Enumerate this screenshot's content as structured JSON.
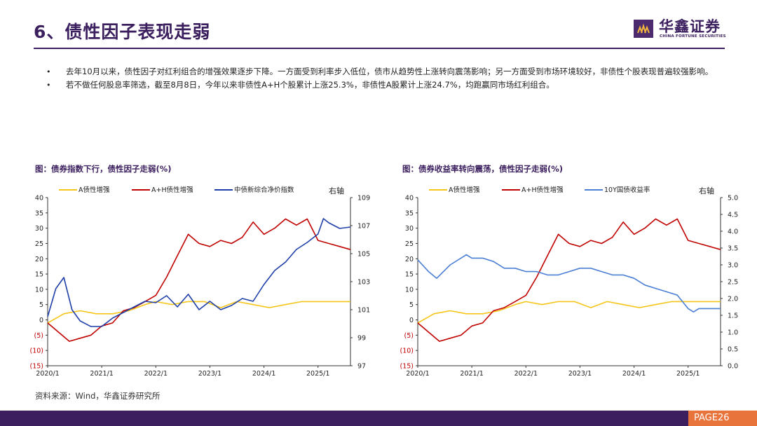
{
  "header": {
    "title": "6、债性因子表现走弱"
  },
  "logo": {
    "cn": "华鑫证券",
    "en": "CHINA FORTUNE SECURITIES"
  },
  "bullets": [
    "去年10月以来，债性因子对红利组合的增强效果逐步下降。一方面受到利率步入低位，债市从趋势性上涨转向震荡影响；另一方面受到市场环境较好，非债性个股表现普遍较强影响。",
    "若不做任何股息率筛选，截至8月8日，今年以来非债性A+H个股累计上涨25.3%，非债性A股累计上涨24.7%，均跑赢同市场红利组合。"
  ],
  "source": "资料来源：Wind，华鑫证券研究所",
  "page_label": "PAGE26",
  "colors": {
    "brand": "#3b1f5e",
    "orange": "#e8743b",
    "yellow": "#f5c518",
    "red": "#c00000",
    "blue": "#1f3fa8",
    "lightblue": "#4a7fd4"
  },
  "chart_data": [
    {
      "type": "line",
      "title": "图：债券指数下行，债性因子走弱(%)",
      "right_axis_label": "右轴",
      "x_ticks": [
        "2020/1",
        "2021/1",
        "2022/1",
        "2023/1",
        "2024/1",
        "2025/1"
      ],
      "x_range": [
        2020.0,
        2025.6
      ],
      "left_ticks": [
        "40",
        "35",
        "30",
        "25",
        "20",
        "15",
        "10",
        "5",
        "0",
        "(5)",
        "(10)",
        "(15)"
      ],
      "ylim_left": [
        -15,
        40
      ],
      "right_ticks": [
        "109",
        "107",
        "105",
        "103",
        "101",
        "99",
        "97"
      ],
      "ylim_right": [
        97,
        109
      ],
      "series": [
        {
          "name": "A债性增强",
          "axis": "left",
          "color": "#f5c518",
          "x": [
            2020.0,
            2020.3,
            2020.6,
            2020.9,
            2021.2,
            2021.5,
            2021.8,
            2022.0,
            2022.3,
            2022.6,
            2022.9,
            2023.2,
            2023.5,
            2023.8,
            2024.1,
            2024.4,
            2024.7,
            2025.0,
            2025.3,
            2025.6
          ],
          "y": [
            -1,
            2,
            3,
            2,
            2,
            3,
            5,
            6,
            5,
            6,
            6,
            4,
            6,
            5,
            4,
            5,
            6,
            6,
            6,
            6
          ]
        },
        {
          "name": "A+H债性增强",
          "axis": "left",
          "color": "#c00000",
          "x": [
            2020.0,
            2020.2,
            2020.4,
            2020.6,
            2020.8,
            2021.0,
            2021.2,
            2021.4,
            2021.6,
            2021.8,
            2022.0,
            2022.2,
            2022.4,
            2022.6,
            2022.8,
            2023.0,
            2023.2,
            2023.4,
            2023.6,
            2023.8,
            2024.0,
            2024.2,
            2024.4,
            2024.6,
            2024.8,
            2025.0,
            2025.2,
            2025.4,
            2025.6
          ],
          "y": [
            -1,
            -4,
            -7,
            -6,
            -5,
            -2,
            -1,
            3,
            4,
            6,
            8,
            14,
            21,
            28,
            25,
            24,
            26,
            25,
            27,
            32,
            28,
            30,
            33,
            31,
            33,
            26,
            25,
            24,
            23
          ]
        },
        {
          "name": "中债新综合净价指数",
          "axis": "right",
          "color": "#1f3fa8",
          "x": [
            2020.0,
            2020.15,
            2020.3,
            2020.45,
            2020.6,
            2020.8,
            2021.0,
            2021.2,
            2021.4,
            2021.6,
            2021.8,
            2022.0,
            2022.2,
            2022.4,
            2022.6,
            2022.8,
            2023.0,
            2023.2,
            2023.4,
            2023.6,
            2023.8,
            2024.0,
            2024.2,
            2024.4,
            2024.6,
            2024.8,
            2025.0,
            2025.1,
            2025.2,
            2025.4,
            2025.6
          ],
          "y": [
            100.5,
            102.5,
            103.3,
            101.0,
            100.2,
            99.8,
            99.8,
            100.4,
            100.8,
            101.2,
            101.6,
            101.5,
            102.0,
            101.2,
            102.1,
            101.0,
            101.6,
            101.0,
            101.3,
            101.8,
            101.6,
            102.8,
            103.8,
            104.4,
            105.3,
            105.8,
            106.4,
            107.5,
            107.2,
            106.8,
            106.9
          ]
        }
      ]
    },
    {
      "type": "line",
      "title": "图：债券收益率转向震荡，债性因子走弱(%)",
      "right_axis_label": "右轴",
      "x_ticks": [
        "2020/1",
        "2021/1",
        "2022/1",
        "2023/1",
        "2024/1",
        "2025/1"
      ],
      "x_range": [
        2020.0,
        2025.6
      ],
      "left_ticks": [
        "40",
        "35",
        "30",
        "25",
        "20",
        "15",
        "10",
        "5",
        "0",
        "(5)",
        "(10)",
        "(15)"
      ],
      "ylim_left": [
        -15,
        40
      ],
      "right_ticks": [
        "5.0",
        "4.5",
        "4.0",
        "3.5",
        "3.0",
        "2.5",
        "2.0",
        "1.5",
        "1.0",
        "0.5",
        "0.0"
      ],
      "ylim_right": [
        0,
        5
      ],
      "series": [
        {
          "name": "A债性增强",
          "axis": "left",
          "color": "#f5c518",
          "x": [
            2020.0,
            2020.3,
            2020.6,
            2020.9,
            2021.2,
            2021.5,
            2021.8,
            2022.0,
            2022.3,
            2022.6,
            2022.9,
            2023.2,
            2023.5,
            2023.8,
            2024.1,
            2024.4,
            2024.7,
            2025.0,
            2025.3,
            2025.6
          ],
          "y": [
            -1,
            2,
            3,
            2,
            2,
            3,
            5,
            6,
            5,
            6,
            6,
            4,
            6,
            5,
            4,
            5,
            6,
            6,
            6,
            6
          ]
        },
        {
          "name": "A+H债性增强",
          "axis": "left",
          "color": "#c00000",
          "x": [
            2020.0,
            2020.2,
            2020.4,
            2020.6,
            2020.8,
            2021.0,
            2021.2,
            2021.4,
            2021.6,
            2021.8,
            2022.0,
            2022.2,
            2022.4,
            2022.6,
            2022.8,
            2023.0,
            2023.2,
            2023.4,
            2023.6,
            2023.8,
            2024.0,
            2024.2,
            2024.4,
            2024.6,
            2024.8,
            2025.0,
            2025.2,
            2025.4,
            2025.6
          ],
          "y": [
            -1,
            -4,
            -7,
            -6,
            -5,
            -2,
            -1,
            3,
            4,
            6,
            8,
            14,
            21,
            28,
            25,
            24,
            26,
            25,
            27,
            32,
            28,
            30,
            33,
            31,
            33,
            26,
            25,
            24,
            23
          ]
        },
        {
          "name": "10Y国债收益率",
          "axis": "right",
          "color": "#4a7fd4",
          "x": [
            2020.0,
            2020.2,
            2020.35,
            2020.6,
            2020.9,
            2021.0,
            2021.2,
            2021.4,
            2021.6,
            2021.8,
            2022.0,
            2022.2,
            2022.4,
            2022.6,
            2022.8,
            2023.0,
            2023.2,
            2023.4,
            2023.6,
            2023.8,
            2024.0,
            2024.2,
            2024.4,
            2024.6,
            2024.8,
            2025.0,
            2025.1,
            2025.2,
            2025.4,
            2025.6
          ],
          "y": [
            3.15,
            2.8,
            2.6,
            3.0,
            3.3,
            3.2,
            3.2,
            3.1,
            2.9,
            2.9,
            2.8,
            2.8,
            2.7,
            2.7,
            2.8,
            2.9,
            2.9,
            2.8,
            2.7,
            2.7,
            2.6,
            2.4,
            2.3,
            2.2,
            2.1,
            1.7,
            1.6,
            1.7,
            1.7,
            1.7
          ]
        }
      ]
    }
  ]
}
